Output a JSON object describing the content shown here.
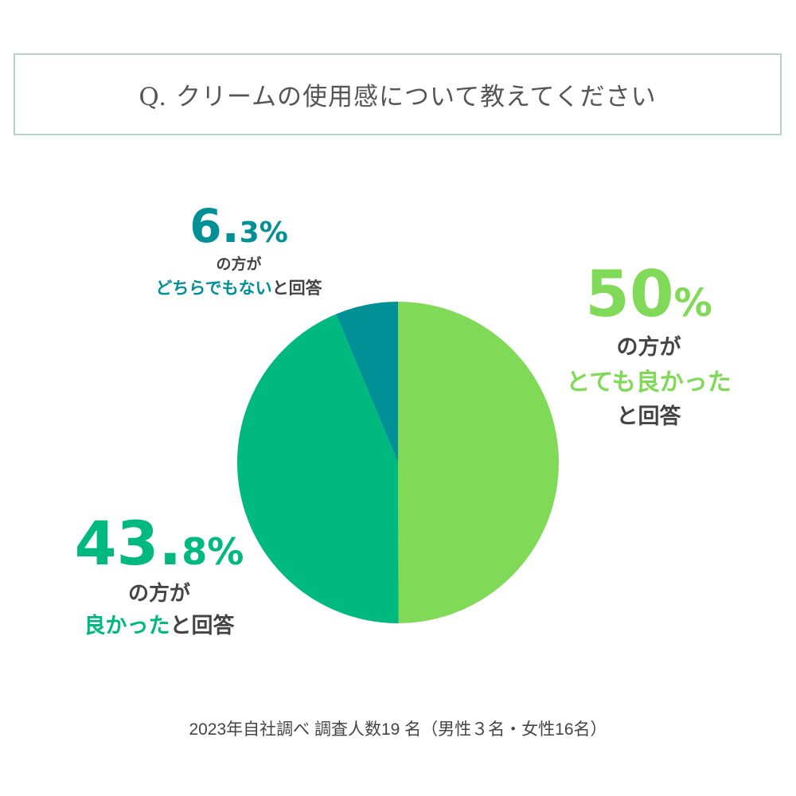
{
  "title": "Q. クリームの使用感について教えてください",
  "footer": "2023年自社調べ 調査人数19 名（男性３名・女性16名）",
  "chart_data": {
    "type": "pie",
    "title": "Q. クリームの使用感について教えてください",
    "start": "top",
    "direction": "clockwise",
    "slices": [
      {
        "name": "とても良かった",
        "value": 50,
        "color": "#80d957",
        "pct_int": "50",
        "pct_dec": "",
        "pct_sign": "%",
        "prefix": "の方が",
        "suffix": "と回答"
      },
      {
        "name": "良かった",
        "value": 43.8,
        "color": "#00b97e",
        "pct_int": "43.",
        "pct_dec": "8",
        "pct_sign": "%",
        "prefix": "の方が",
        "suffix": "と回答"
      },
      {
        "name": "どちらでもない",
        "value": 6.3,
        "color": "#009095",
        "pct_int": "6.",
        "pct_dec": "3",
        "pct_sign": "%",
        "prefix": "の方が",
        "suffix": "と回答"
      }
    ]
  }
}
